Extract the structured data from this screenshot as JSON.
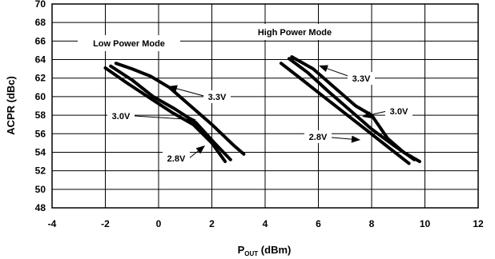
{
  "chart_data": {
    "type": "line",
    "xlabel": "P",
    "xlabel_sub": "OUT",
    "xlabel_unit": " (dBm)",
    "ylabel": "ACPR (dBc)",
    "xlim": [
      -4,
      12
    ],
    "ylim": [
      48,
      70
    ],
    "xticks": [
      -4,
      -2,
      0,
      2,
      4,
      6,
      8,
      10,
      12
    ],
    "yticks": [
      48,
      50,
      52,
      54,
      56,
      58,
      60,
      62,
      64,
      66,
      68,
      70
    ],
    "grid": true,
    "annotations": {
      "low_mode": "Low Power Mode",
      "high_mode": "High Power Mode",
      "low_3v3": "3.3V",
      "low_3v0": "3.0V",
      "low_2v8": "2.8V",
      "high_3v3": "3.3V",
      "high_3v0": "3.0V",
      "high_2v8": "2.8V"
    },
    "series": [
      {
        "group": "low",
        "x": [
          -1.6,
          -1.0,
          -0.3,
          0.4,
          1.2,
          2.0,
          2.8,
          3.2
        ],
        "y": [
          63.6,
          63.0,
          62.2,
          61.0,
          59.0,
          57.0,
          54.8,
          53.8
        ]
      },
      {
        "group": "low",
        "x": [
          -1.8,
          -1.0,
          -0.2,
          0.6,
          1.4,
          2.1,
          2.7
        ],
        "y": [
          63.3,
          61.8,
          60.0,
          58.7,
          57.2,
          55.0,
          53.2
        ]
      },
      {
        "group": "low",
        "x": [
          -2.0,
          -1.2,
          -0.3,
          0.5,
          1.3,
          2.0,
          2.5
        ],
        "y": [
          63.1,
          61.5,
          59.8,
          58.3,
          57.0,
          55.0,
          53.0
        ]
      },
      {
        "group": "high",
        "x": [
          5.0,
          5.8,
          6.6,
          7.4,
          8.0,
          8.6,
          9.2,
          9.8
        ],
        "y": [
          64.3,
          63.0,
          61.0,
          59.0,
          58.0,
          55.5,
          54.0,
          53.0
        ]
      },
      {
        "group": "high",
        "x": [
          4.9,
          5.6,
          6.4,
          7.2,
          8.0,
          8.8,
          9.6
        ],
        "y": [
          64.1,
          62.6,
          60.5,
          58.5,
          56.5,
          54.8,
          53.2
        ]
      },
      {
        "group": "high",
        "x": [
          4.6,
          5.4,
          6.2,
          7.0,
          7.8,
          8.6,
          9.4
        ],
        "y": [
          63.6,
          61.8,
          60.0,
          58.2,
          56.4,
          54.6,
          52.8
        ]
      }
    ]
  }
}
